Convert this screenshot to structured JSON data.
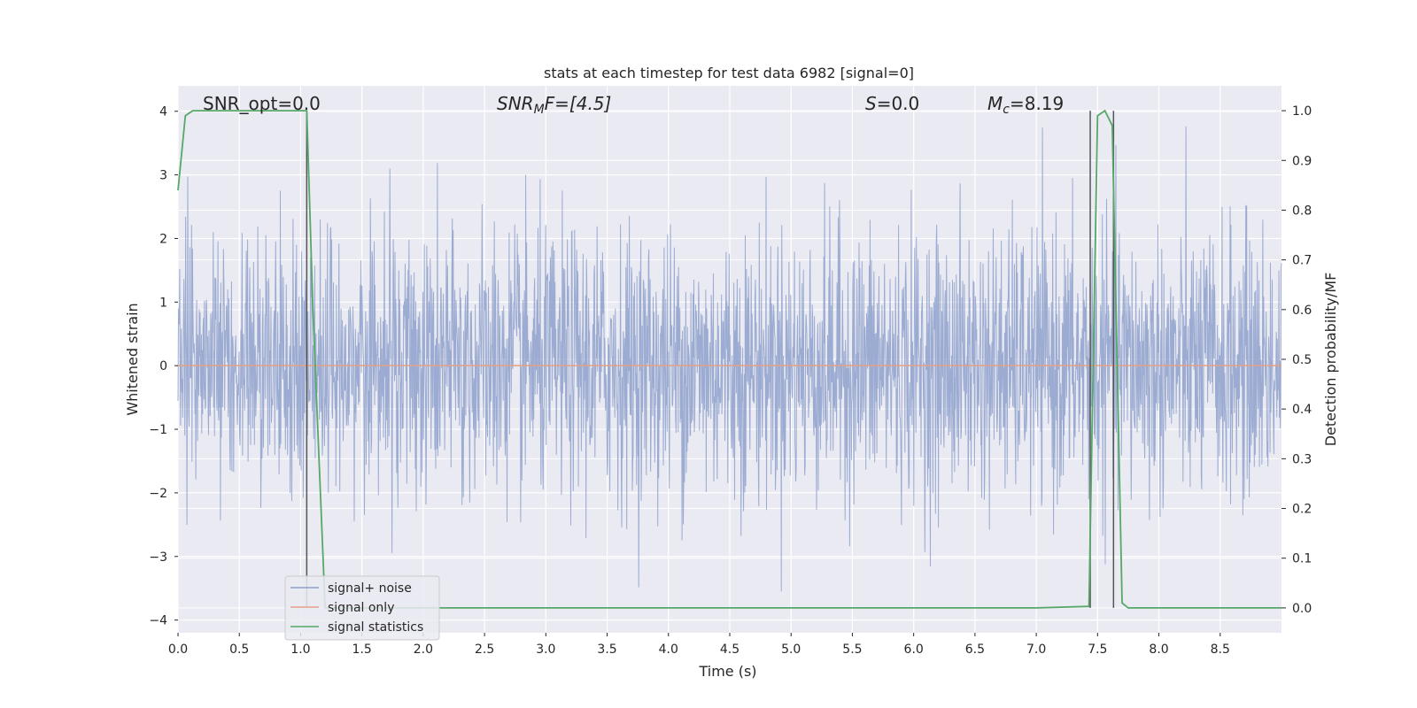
{
  "chart_data": {
    "type": "line",
    "title": "stats at each timestep for test data 6982 [signal=0]",
    "xlabel": "Time (s)",
    "ylabel": "Whitened strain",
    "ylabel_right": "Detection probability/MF",
    "xlim": [
      0.0,
      9.0
    ],
    "ylim": [
      -4.2,
      4.4
    ],
    "ylim_right": [
      -0.05,
      1.05
    ],
    "x_ticks": [
      "0.0",
      "0.5",
      "1.0",
      "1.5",
      "2.0",
      "2.5",
      "3.0",
      "3.5",
      "4.0",
      "4.5",
      "5.0",
      "5.5",
      "6.0",
      "6.5",
      "7.0",
      "7.5",
      "8.0",
      "8.5"
    ],
    "y_ticks": [
      "4",
      "3",
      "2",
      "1",
      "0",
      "−1",
      "−2",
      "−3",
      "−4"
    ],
    "y_ticks_right": [
      "1.0",
      "0.9",
      "0.8",
      "0.7",
      "0.6",
      "0.5",
      "0.4",
      "0.3",
      "0.2",
      "0.1",
      "0.0"
    ],
    "grid": true,
    "legend_position": "lower-left",
    "annotations": {
      "snr_opt": "SNR_opt=0.0",
      "snr_mf_label": "SNR",
      "snr_mf_sub": "M",
      "snr_mf_rest": "F=[4.5]",
      "s_label": "S",
      "s_rest": "=0.0",
      "mc_label": "M",
      "mc_sub": "c",
      "mc_rest": "=8.19"
    },
    "vertical_lines_x": [
      1.05,
      7.44,
      7.63
    ],
    "series": [
      {
        "name": "signal+ noise",
        "color": "#8da0cb",
        "axis": "left",
        "noise_sigma": 1.05,
        "x_range": [
          0.0,
          9.0
        ]
      },
      {
        "name": "signal only",
        "color": "#e5a086",
        "axis": "left",
        "x": [
          0.0,
          9.0
        ],
        "y": [
          0.0,
          0.0
        ]
      },
      {
        "name": "signal statistics",
        "color": "#55a868",
        "axis": "right",
        "x": [
          0.0,
          0.06,
          0.12,
          0.5,
          1.0,
          1.05,
          1.1,
          1.2,
          1.5,
          2.0,
          2.2,
          5.0,
          7.0,
          7.43,
          7.5,
          7.56,
          7.62,
          7.7,
          7.75,
          8.0,
          9.0
        ],
        "y": [
          0.84,
          0.99,
          1.0,
          1.0,
          1.0,
          1.0,
          0.6,
          0.0,
          0.0,
          0.0,
          0.0,
          0.0,
          0.0,
          0.003,
          0.99,
          1.0,
          0.97,
          0.01,
          0.0,
          0.0,
          0.0
        ]
      }
    ]
  }
}
